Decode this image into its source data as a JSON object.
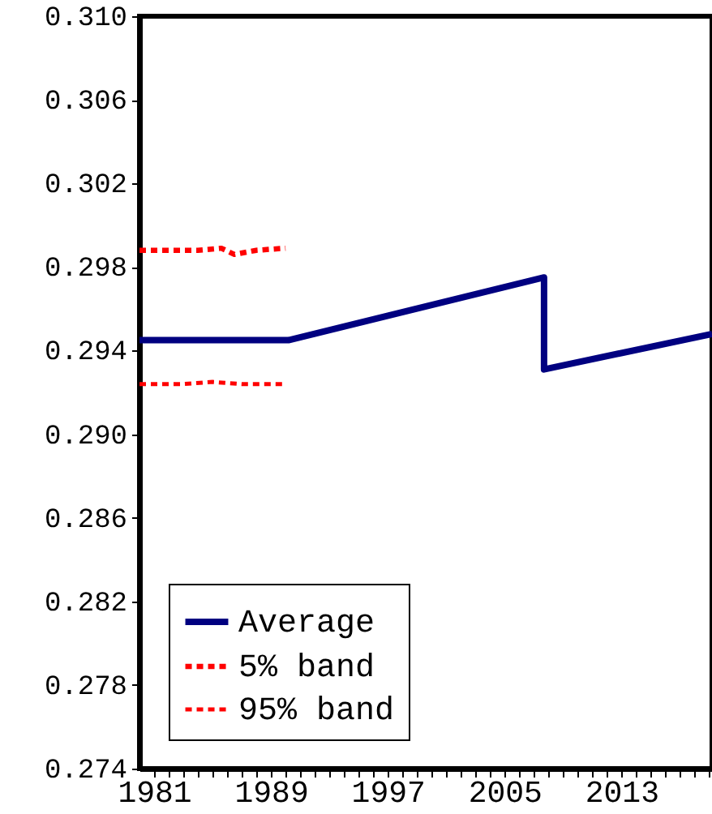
{
  "chart_data": {
    "type": "line",
    "series": [
      {
        "name": "Average",
        "color": "#000080",
        "line_style": "solid",
        "x": [
          1980,
          1990.2,
          2007.7,
          2007.7,
          2019.2
        ],
        "values": [
          0.2945,
          0.2945,
          0.2975,
          0.2931,
          0.2948
        ]
      },
      {
        "name": "5% band",
        "color": "#ff0000",
        "line_style": "dashed",
        "x": [
          1980,
          1982.7,
          1984,
          1985.6,
          1986.5,
          1988,
          1990
        ],
        "values": [
          0.2988,
          0.2988,
          0.2988,
          0.2989,
          0.2986,
          0.2988,
          0.2989
        ]
      },
      {
        "name": "95% band",
        "color": "#ff0000",
        "line_style": "dashed",
        "x": [
          1980,
          1983,
          1985,
          1987,
          1990
        ],
        "values": [
          0.2924,
          0.2924,
          0.2925,
          0.2924,
          0.2924
        ]
      }
    ],
    "xlim": [
      1980,
      2019.2
    ],
    "xticks": [
      {
        "value": 1981,
        "label": "1981"
      },
      {
        "value": 1982,
        "label": null
      },
      {
        "value": 1983,
        "label": null
      },
      {
        "value": 1984,
        "label": null
      },
      {
        "value": 1985,
        "label": null
      },
      {
        "value": 1986,
        "label": null
      },
      {
        "value": 1987,
        "label": null
      },
      {
        "value": 1988,
        "label": null
      },
      {
        "value": 1989,
        "label": "1989"
      },
      {
        "value": 1990,
        "label": null
      },
      {
        "value": 1991,
        "label": null
      },
      {
        "value": 1992,
        "label": null
      },
      {
        "value": 1993,
        "label": null
      },
      {
        "value": 1994,
        "label": null
      },
      {
        "value": 1995,
        "label": null
      },
      {
        "value": 1996,
        "label": null
      },
      {
        "value": 1997,
        "label": "1997"
      },
      {
        "value": 1998,
        "label": null
      },
      {
        "value": 1999,
        "label": null
      },
      {
        "value": 2000,
        "label": null
      },
      {
        "value": 2001,
        "label": null
      },
      {
        "value": 2002,
        "label": null
      },
      {
        "value": 2003,
        "label": null
      },
      {
        "value": 2004,
        "label": null
      },
      {
        "value": 2005,
        "label": "2005"
      },
      {
        "value": 2006,
        "label": null
      },
      {
        "value": 2007,
        "label": null
      },
      {
        "value": 2008,
        "label": null
      },
      {
        "value": 2009,
        "label": null
      },
      {
        "value": 2010,
        "label": null
      },
      {
        "value": 2011,
        "label": null
      },
      {
        "value": 2012,
        "label": null
      },
      {
        "value": 2013,
        "label": "2013"
      },
      {
        "value": 2014,
        "label": null
      },
      {
        "value": 2015,
        "label": null
      },
      {
        "value": 2016,
        "label": null
      },
      {
        "value": 2017,
        "label": null
      },
      {
        "value": 2018,
        "label": null
      },
      {
        "value": 2019,
        "label": null
      }
    ],
    "ylim": [
      0.274,
      0.31
    ],
    "yticks": [
      {
        "value": 0.274,
        "label": "0.274"
      },
      {
        "value": 0.278,
        "label": "0.278"
      },
      {
        "value": 0.282,
        "label": "0.282"
      },
      {
        "value": 0.286,
        "label": "0.286"
      },
      {
        "value": 0.29,
        "label": "0.290"
      },
      {
        "value": 0.294,
        "label": "0.294"
      },
      {
        "value": 0.298,
        "label": "0.298"
      },
      {
        "value": 0.302,
        "label": "0.302"
      },
      {
        "value": 0.306,
        "label": "0.306"
      },
      {
        "value": 0.31,
        "label": "0.310"
      }
    ],
    "grid": false,
    "legend": "bottom left"
  }
}
